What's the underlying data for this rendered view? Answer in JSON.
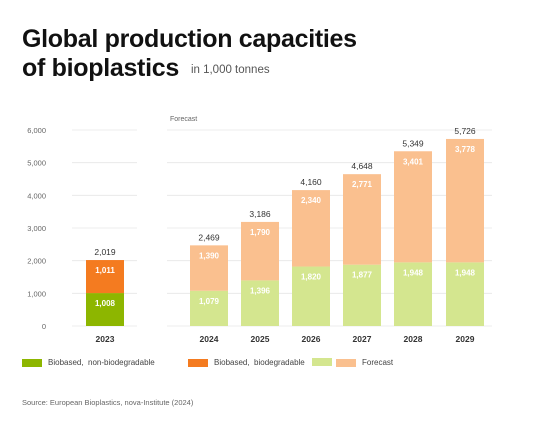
{
  "title_line1": "Global production capacities",
  "title_line2": "of bioplastics",
  "subtitle": "in 1,000 tonnes",
  "source": "Source: European Bioplastics, nova-Institute (2024)",
  "colors": {
    "non_degradable": "#8DB600",
    "biodegradable": "#F47B20",
    "forecast_non_degradable": "#D4E68F",
    "forecast_biodegradable": "#FAC08F",
    "gridline": "#E6E6E6",
    "axis_text": "#666666"
  },
  "legend": [
    {
      "label": "Biobased,  non-biodegradable",
      "color_key": "non_degradable"
    },
    {
      "label": "Biobased,  biodegradable",
      "color_key": "biodegradable"
    },
    {
      "label": "",
      "color_key": "forecast_non_degradable"
    },
    {
      "label": "Forecast",
      "color_key": "forecast_biodegradable"
    }
  ],
  "chart_data": {
    "type": "bar",
    "stacked": true,
    "title": "Global production capacities of bioplastics",
    "subtitle": "in 1,000 tonnes",
    "forecast_label": "Forecast",
    "categories": [
      "2023",
      "2024",
      "2025",
      "2026",
      "2027",
      "2028",
      "2029"
    ],
    "forecast": [
      false,
      true,
      true,
      true,
      true,
      true,
      true
    ],
    "series": [
      {
        "name": "Biobased,  non-biodegradable",
        "values": [
          1008,
          1079,
          1396,
          1820,
          1877,
          1948,
          1948
        ]
      },
      {
        "name": "Biobased,  biodegradable",
        "values": [
          1011,
          1390,
          1790,
          2340,
          2771,
          3401,
          3778
        ]
      }
    ],
    "value_labels_bottom": [
      "1,008",
      "1,079",
      "1,396",
      "1,820",
      "1,877",
      "1,948",
      "1,948"
    ],
    "value_labels_top": [
      "1,011",
      "1,390",
      "1,790",
      "2,340",
      "2,771",
      "3,401",
      "3,778"
    ],
    "totals": [
      2019,
      2469,
      3186,
      4160,
      4648,
      5349,
      5726
    ],
    "total_labels": [
      "2,019",
      "2,469",
      "3,186",
      "4,160",
      "4,648",
      "5,349",
      "5,726"
    ],
    "ylim": [
      0,
      6000
    ],
    "yticks": [
      0,
      1000,
      2000,
      3000,
      4000,
      5000,
      6000
    ],
    "ytick_labels": [
      "0",
      "1,000",
      "2,000",
      "3,000",
      "4,000",
      "5,000",
      "6,000"
    ],
    "grid": true,
    "legend_position": "bottom"
  }
}
